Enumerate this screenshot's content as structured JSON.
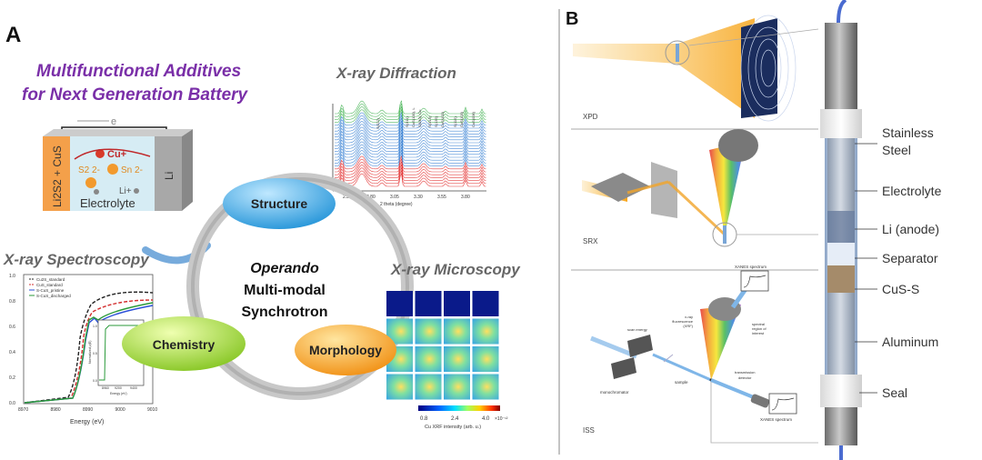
{
  "panel_a": {
    "label": "A",
    "title_line1": "Multifunctional  Additives",
    "title_line2": "for Next Generation Battery",
    "title_color": "#7a2fa8",
    "battery": {
      "electron": "e",
      "cathode": "Li2S2 + CuS",
      "anode": "Li",
      "cu_ion": "Cu+",
      "s2": "S2 2-",
      "sn": "Sn 2-",
      "li_ion": "Li+",
      "electrolyte": "Electrolyte"
    },
    "spectroscopy": {
      "title": "X-ray Spectroscopy",
      "legend": [
        "Cu2S_standard",
        "CuS_standard",
        "S-CuS_pristine",
        "S-CuS_discharged"
      ],
      "y_ticks": [
        "0.0",
        "0.2",
        "0.4",
        "0.6",
        "0.8",
        "1.0"
      ],
      "x_ticks": [
        "8970",
        "8980",
        "8990",
        "9000",
        "9010"
      ],
      "xlabel": "Energy (eV)",
      "inset_xlabel": "Energy (eV)",
      "inset_x_ticks": [
        "8960",
        "9200",
        "9400"
      ],
      "inset_y_ticks": [
        "0.0",
        "0.5",
        "1.0"
      ],
      "inset_ylabel": "Normalized μ(E)"
    },
    "diffraction": {
      "title": "X-ray Diffraction",
      "x_ticks": [
        "2.55",
        "2.80",
        "3.05",
        "3.30",
        "3.55",
        "3.80"
      ],
      "xlabel": "2 theta (degree)",
      "peak_labels": [
        "S(222)",
        "S(311)",
        "CuS(100), L",
        "S(040), Cu",
        "S(313)",
        "S(135)",
        "CuS(102)",
        "S(115)",
        "CuS(103)",
        "CuS(006)"
      ]
    },
    "cycle": {
      "structure": "Structure",
      "chemistry": "Chemistry",
      "morphology": "Morphology",
      "center_line1": "Operando",
      "center_line2": "Multi-modal",
      "center_line3": "Synchrotron"
    },
    "microscopy": {
      "title": "X-ray Microscopy",
      "colorbar_ticks": [
        "0.8",
        "2.4",
        "4.0"
      ],
      "colorbar_exp": "×10⁻¹²",
      "colorbar_label": "Cu XRF intensity (arb. u.)"
    }
  },
  "panel_b": {
    "label": "B",
    "xpd": "XPD",
    "srx": "SRX",
    "iss": {
      "label": "ISS",
      "scan_energy": "scan energy",
      "monochromator": "monochromator",
      "sample": "sample",
      "xrf_line1": "x-ray",
      "xrf_line2": "fluorescence",
      "xrf_line3": "(XRF)",
      "xanes_top": "XANES spectrum",
      "roi_line1": "spectral",
      "roi_line2": "region of",
      "roi_line3": "interest",
      "transmission_line1": "transmission",
      "transmission_line2": "detector",
      "xanes_bottom": "XANES spectrum"
    },
    "cell_labels": {
      "stainless1": "Stainless",
      "stainless2": "Steel",
      "electrolyte": "Electrolyte",
      "li_anode": "Li (anode)",
      "separator": "Separator",
      "cus_s": "CuS-S",
      "aluminum": "Aluminum",
      "seal": "Seal"
    }
  }
}
